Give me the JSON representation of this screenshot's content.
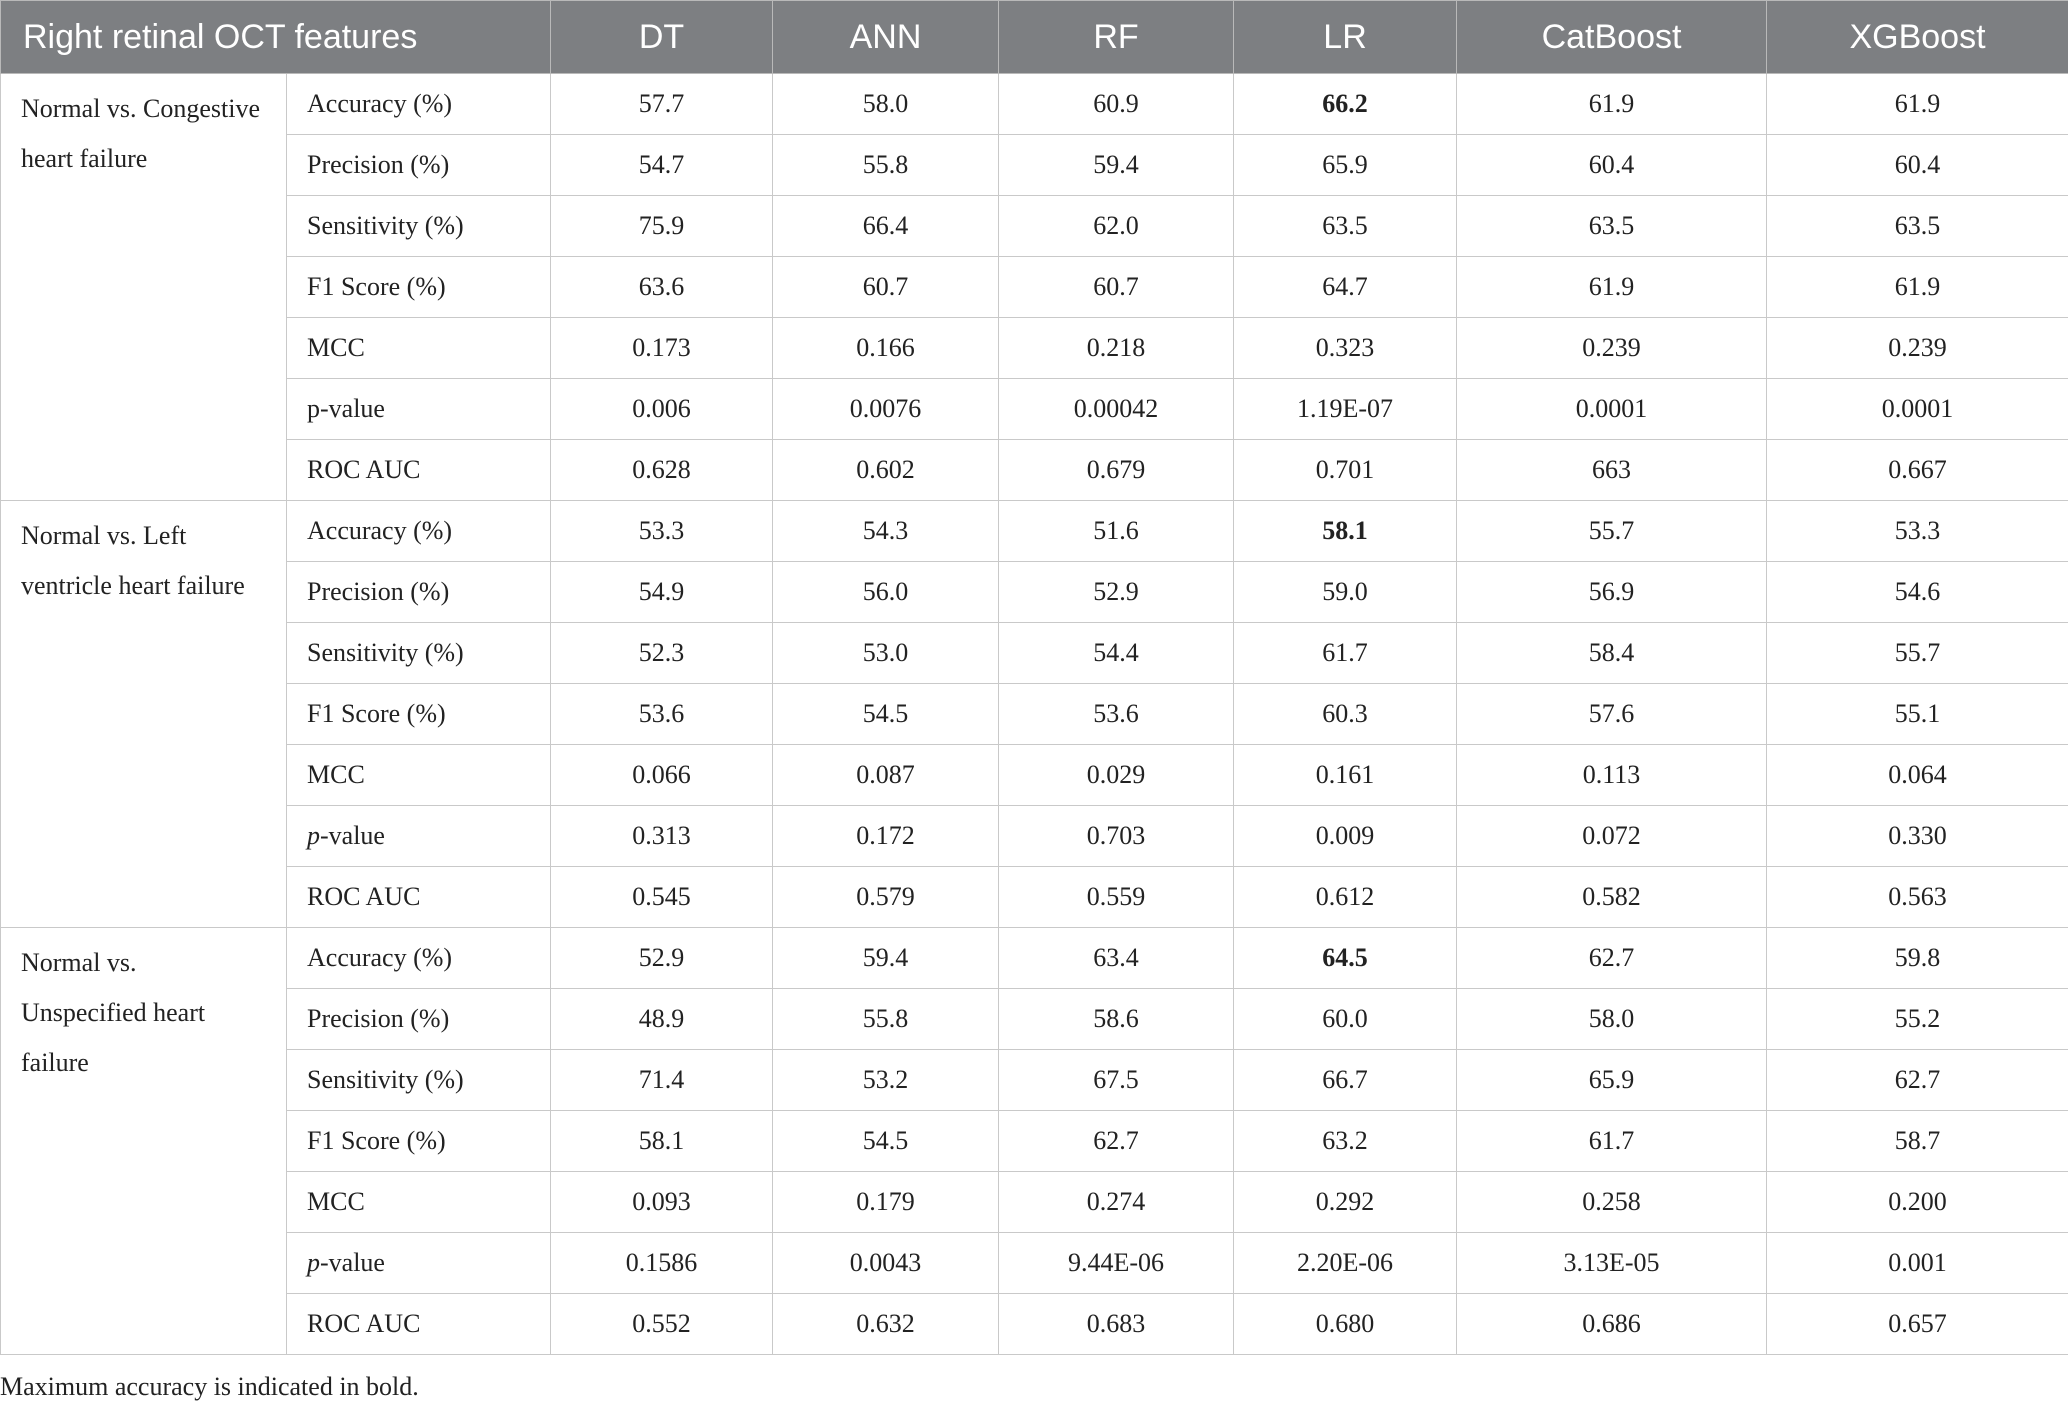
{
  "table": {
    "header": [
      "Right retinal OCT features",
      "DT",
      "ANN",
      "RF",
      "LR",
      "CatBoost",
      "XGBoost"
    ],
    "groups": [
      {
        "label": "Normal vs. Congestive heart failure",
        "rows": [
          {
            "metric": "Accuracy (%)",
            "values": [
              "57.7",
              "58.0",
              "60.9",
              "66.2",
              "61.9",
              "61.9"
            ],
            "bold": 3
          },
          {
            "metric": "Precision (%)",
            "values": [
              "54.7",
              "55.8",
              "59.4",
              "65.9",
              "60.4",
              "60.4"
            ]
          },
          {
            "metric": "Sensitivity (%)",
            "values": [
              "75.9",
              "66.4",
              "62.0",
              "63.5",
              "63.5",
              "63.5"
            ]
          },
          {
            "metric": "F1 Score (%)",
            "values": [
              "63.6",
              "60.7",
              "60.7",
              "64.7",
              "61.9",
              "61.9"
            ]
          },
          {
            "metric": "MCC",
            "values": [
              "0.173",
              "0.166",
              "0.218",
              "0.323",
              "0.239",
              "0.239"
            ]
          },
          {
            "metric": "p-value",
            "values": [
              "0.006",
              "0.0076",
              "0.00042",
              "1.19E-07",
              "0.0001",
              "0.0001"
            ]
          },
          {
            "metric": "ROC AUC",
            "values": [
              "0.628",
              "0.602",
              "0.679",
              "0.701",
              "663",
              "0.667"
            ]
          }
        ]
      },
      {
        "label": "Normal vs. Left ventricle heart failure",
        "rows": [
          {
            "metric": "Accuracy (%)",
            "values": [
              "53.3",
              "54.3",
              "51.6",
              "58.1",
              "55.7",
              "53.3"
            ],
            "bold": 3
          },
          {
            "metric": "Precision (%)",
            "values": [
              "54.9",
              "56.0",
              "52.9",
              "59.0",
              "56.9",
              "54.6"
            ]
          },
          {
            "metric": "Sensitivity (%)",
            "values": [
              "52.3",
              "53.0",
              "54.4",
              "61.7",
              "58.4",
              "55.7"
            ]
          },
          {
            "metric": "F1 Score (%)",
            "values": [
              "53.6",
              "54.5",
              "53.6",
              "60.3",
              "57.6",
              "55.1"
            ]
          },
          {
            "metric": "MCC",
            "values": [
              "0.066",
              "0.087",
              "0.029",
              "0.161",
              "0.113",
              "0.064"
            ]
          },
          {
            "metric": "p-value",
            "values": [
              "0.313",
              "0.172",
              "0.703",
              "0.009",
              "0.072",
              "0.330"
            ],
            "italic_first": true
          },
          {
            "metric": "ROC AUC",
            "values": [
              "0.545",
              "0.579",
              "0.559",
              "0.612",
              "0.582",
              "0.563"
            ]
          }
        ]
      },
      {
        "label": "Normal vs. Unspecified heart failure",
        "rows": [
          {
            "metric": "Accuracy (%)",
            "values": [
              "52.9",
              "59.4",
              "63.4",
              "64.5",
              "62.7",
              "59.8"
            ],
            "bold": 3
          },
          {
            "metric": "Precision (%)",
            "values": [
              "48.9",
              "55.8",
              "58.6",
              "60.0",
              "58.0",
              "55.2"
            ]
          },
          {
            "metric": "Sensitivity (%)",
            "values": [
              "71.4",
              "53.2",
              "67.5",
              "66.7",
              "65.9",
              "62.7"
            ]
          },
          {
            "metric": "F1 Score (%)",
            "values": [
              "58.1",
              "54.5",
              "62.7",
              "63.2",
              "61.7",
              "58.7"
            ]
          },
          {
            "metric": "MCC",
            "values": [
              "0.093",
              "0.179",
              "0.274",
              "0.292",
              "0.258",
              "0.200"
            ]
          },
          {
            "metric": "p-value",
            "values": [
              "0.1586",
              "0.0043",
              "9.44E-06",
              "2.20E-06",
              "3.13E-05",
              "0.001"
            ],
            "italic_first": true
          },
          {
            "metric": "ROC AUC",
            "values": [
              "0.552",
              "0.632",
              "0.683",
              "0.680",
              "0.686",
              "0.657"
            ]
          }
        ]
      }
    ],
    "footnote": "Maximum accuracy is indicated in bold."
  }
}
